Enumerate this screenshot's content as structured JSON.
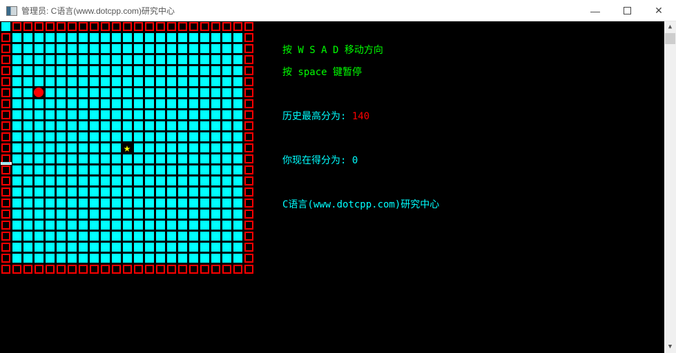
{
  "window": {
    "title": "管理员:  C语言(www.dotcpp.com)研究中心",
    "minimize_icon": "minimize-icon",
    "maximize_icon": "maximize-icon",
    "close_icon": "close-icon"
  },
  "game": {
    "grid_size": 23,
    "snake_head": [
      0,
      0
    ],
    "food": {
      "col": 3,
      "row": 6,
      "icon": "red-circle"
    },
    "bonus": {
      "col": 11,
      "row": 11,
      "icon": "star-icon"
    },
    "colors": {
      "wall": "#ff0000",
      "field": "#00ffff",
      "food": "#ff0000",
      "star": "#ffff00"
    }
  },
  "info": {
    "move_hint": "按 W S A D 移动方向",
    "pause_hint": "按 space 键暂停",
    "high_score_label": "历史最高分为: ",
    "high_score": "140",
    "score_label": "你现在得分为: ",
    "score": "0",
    "credit": "C语言(www.dotcpp.com)研究中心"
  }
}
